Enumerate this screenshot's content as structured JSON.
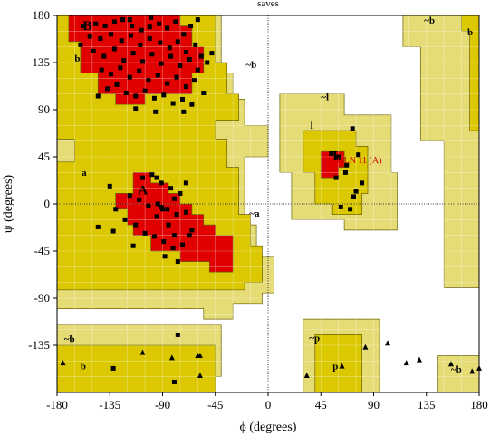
{
  "chart_data": {
    "type": "scatter",
    "title": "saves",
    "xlabel": "ϕ (degrees)",
    "ylabel": "ψ (degrees)",
    "xlim": [
      -180,
      180
    ],
    "ylim": [
      -180,
      180
    ],
    "xticks": [
      -180,
      -135,
      -90,
      -45,
      0,
      45,
      90,
      135,
      180
    ],
    "yticks": [
      -135,
      -90,
      -45,
      0,
      45,
      90,
      135,
      180
    ],
    "grid": true,
    "colors": {
      "most_favoured": "#e00000",
      "additional_allowed": "#dbc800",
      "generously_allowed": "#e6dc75",
      "disallowed": "#ffffff",
      "residue_marker": "#000000",
      "highlight_label": "#cc0000"
    },
    "region_labels": [
      {
        "text": "B",
        "x": -158,
        "y": 166
      },
      {
        "text": "b",
        "x": -165,
        "y": 136
      },
      {
        "text": "~b",
        "x": -19,
        "y": 130
      },
      {
        "text": "~b",
        "x": 133,
        "y": 172
      },
      {
        "text": "b",
        "x": 170,
        "y": 161
      },
      {
        "text": "~l",
        "x": 45,
        "y": 99
      },
      {
        "text": "l",
        "x": 36,
        "y": 72
      },
      {
        "text": "L",
        "x": 55,
        "y": 42
      },
      {
        "text": "a",
        "x": -159,
        "y": 27
      },
      {
        "text": "A",
        "x": -111,
        "y": 9
      },
      {
        "text": "~a",
        "x": -16,
        "y": -12
      },
      {
        "text": "~b",
        "x": -174,
        "y": -132
      },
      {
        "text": "b",
        "x": -160,
        "y": -158
      },
      {
        "text": "~p",
        "x": 35,
        "y": -131
      },
      {
        "text": "p",
        "x": 55,
        "y": -158
      },
      {
        "text": "~b",
        "x": 156,
        "y": -161
      }
    ],
    "highlight": {
      "text": "GLN   11 (A)",
      "x": 59,
      "y": 39
    },
    "series": [
      {
        "marker": "square",
        "points": [
          [
            -158,
            170
          ],
          [
            -147,
            172
          ],
          [
            -139,
            170
          ],
          [
            -131,
            174
          ],
          [
            -124,
            176
          ],
          [
            -116,
            170
          ],
          [
            -108,
            166
          ],
          [
            -101,
            169
          ],
          [
            -93,
            172
          ],
          [
            -86,
            168
          ],
          [
            -79,
            174
          ],
          [
            -72,
            162
          ],
          [
            -66,
            170
          ],
          [
            -152,
            160
          ],
          [
            -143,
            158
          ],
          [
            -134,
            162
          ],
          [
            -125,
            156
          ],
          [
            -117,
            161
          ],
          [
            -109,
            152
          ],
          [
            -101,
            158
          ],
          [
            -92,
            154
          ],
          [
            -84,
            149
          ],
          [
            -77,
            155
          ],
          [
            -70,
            145
          ],
          [
            -62,
            152
          ],
          [
            -57,
            141
          ],
          [
            -149,
            146
          ],
          [
            -140,
            141
          ],
          [
            -131,
            148
          ],
          [
            -123,
            137
          ],
          [
            -115,
            144
          ],
          [
            -107,
            136
          ],
          [
            -99,
            143
          ],
          [
            -91,
            134
          ],
          [
            -83,
            141
          ],
          [
            -75,
            132
          ],
          [
            -67,
            138
          ],
          [
            -60,
            128
          ],
          [
            -52,
            135
          ],
          [
            -142,
            128
          ],
          [
            -134,
            124
          ],
          [
            -126,
            130
          ],
          [
            -118,
            121
          ],
          [
            -110,
            127
          ],
          [
            -102,
            118
          ],
          [
            -94,
            123
          ],
          [
            -86,
            115
          ],
          [
            -78,
            121
          ],
          [
            -70,
            112
          ],
          [
            -63,
            118
          ],
          [
            -55,
            106
          ],
          [
            -137,
            110
          ],
          [
            -129,
            114
          ],
          [
            -121,
            106
          ],
          [
            -113,
            103
          ],
          [
            -105,
            108
          ],
          [
            -97,
            101
          ],
          [
            -89,
            104
          ],
          [
            -81,
            96
          ],
          [
            -73,
            100
          ],
          [
            -65,
            95
          ],
          [
            -113,
            91
          ],
          [
            -96,
            88
          ],
          [
            -72,
            88
          ],
          [
            -145,
            103
          ],
          [
            -160,
            152
          ],
          [
            -48,
            144
          ],
          [
            -118,
            176
          ],
          [
            -60,
            176
          ],
          [
            -100,
            178
          ],
          [
            -107,
            25
          ],
          [
            -99,
            28
          ],
          [
            -91,
            20
          ],
          [
            -83,
            15
          ],
          [
            -75,
            10
          ],
          [
            -118,
            8
          ],
          [
            -110,
            4
          ],
          [
            -102,
            -2
          ],
          [
            -94,
            0
          ],
          [
            -86,
            -5
          ],
          [
            -78,
            -10
          ],
          [
            -70,
            -8
          ],
          [
            -122,
            -15
          ],
          [
            -113,
            -20
          ],
          [
            -105,
            -28
          ],
          [
            -97,
            -31
          ],
          [
            -89,
            -36
          ],
          [
            -81,
            -42
          ],
          [
            -73,
            -39
          ],
          [
            -65,
            -25
          ],
          [
            -130,
            -5
          ],
          [
            -135,
            17
          ],
          [
            -88,
            -50
          ],
          [
            -77,
            -55
          ],
          [
            -95,
            -12
          ],
          [
            -80,
            5
          ],
          [
            -70,
            20
          ],
          [
            -115,
            -40
          ],
          [
            -85,
            -20
          ],
          [
            -145,
            -22
          ],
          [
            -132,
            -26
          ],
          [
            -95,
            25
          ],
          [
            -91,
            -3
          ],
          [
            -80,
            -30
          ],
          [
            -67,
            -30
          ],
          [
            -77,
            -125
          ],
          [
            -90,
            -5
          ],
          [
            -132,
            -157
          ],
          [
            -80,
            -170
          ],
          [
            54,
            48
          ],
          [
            60,
            45
          ],
          [
            67,
            37
          ],
          [
            72,
            72
          ],
          [
            77,
            47
          ],
          [
            58,
            25
          ],
          [
            66,
            30
          ],
          [
            80,
            20
          ],
          [
            75,
            12
          ],
          [
            73,
            7
          ],
          [
            70,
            -5
          ],
          [
            62,
            -3
          ]
        ]
      },
      {
        "marker": "triangle",
        "points": [
          [
            -175,
            -152
          ],
          [
            -107,
            -142
          ],
          [
            -58,
            -164
          ],
          [
            -82,
            -147
          ],
          [
            -58,
            -145
          ],
          [
            33,
            -164
          ],
          [
            63,
            -155
          ],
          [
            83,
            -137
          ],
          [
            102,
            -133
          ],
          [
            118,
            -152
          ],
          [
            129,
            -149
          ],
          [
            156,
            -153
          ],
          [
            180,
            -157
          ],
          [
            174,
            -160
          ],
          [
            -60,
            -145
          ]
        ]
      }
    ]
  }
}
